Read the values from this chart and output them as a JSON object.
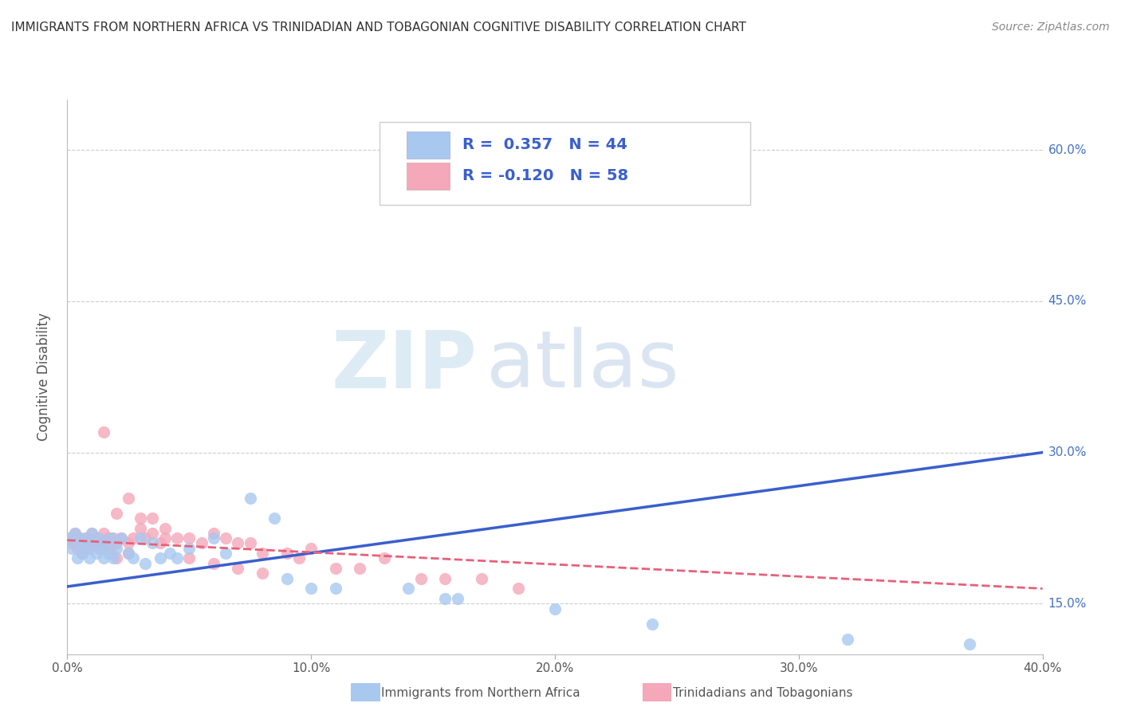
{
  "title": "IMMIGRANTS FROM NORTHERN AFRICA VS TRINIDADIAN AND TOBAGONIAN COGNITIVE DISABILITY CORRELATION CHART",
  "source": "Source: ZipAtlas.com",
  "xlabel_blue": "Immigrants from Northern Africa",
  "xlabel_pink": "Trinidadians and Tobagonians",
  "ylabel": "Cognitive Disability",
  "xlim": [
    0.0,
    0.4
  ],
  "ylim": [
    0.1,
    0.65
  ],
  "yticks": [
    0.15,
    0.3,
    0.45,
    0.6
  ],
  "ytick_labels": [
    "15.0%",
    "30.0%",
    "45.0%",
    "60.0%"
  ],
  "xticks": [
    0.0,
    0.1,
    0.2,
    0.3,
    0.4
  ],
  "xtick_labels": [
    "0.0%",
    "10.0%",
    "20.0%",
    "30.0%",
    "40.0%"
  ],
  "blue_R": 0.357,
  "blue_N": 44,
  "pink_R": -0.12,
  "pink_N": 58,
  "blue_color": "#A8C8F0",
  "pink_color": "#F4A8BA",
  "blue_line_color": "#3A5FCD",
  "pink_line_color": "#E8607A",
  "watermark_zip": "ZIP",
  "watermark_atlas": "atlas",
  "blue_scatter_x": [
    0.001,
    0.002,
    0.003,
    0.004,
    0.005,
    0.006,
    0.007,
    0.008,
    0.009,
    0.01,
    0.011,
    0.012,
    0.013,
    0.014,
    0.015,
    0.016,
    0.017,
    0.018,
    0.019,
    0.02,
    0.022,
    0.025,
    0.027,
    0.03,
    0.032,
    0.035,
    0.038,
    0.042,
    0.045,
    0.05,
    0.06,
    0.065,
    0.075,
    0.085,
    0.09,
    0.1,
    0.11,
    0.14,
    0.155,
    0.16,
    0.2,
    0.24,
    0.32,
    0.37
  ],
  "blue_scatter_y": [
    0.215,
    0.205,
    0.22,
    0.195,
    0.21,
    0.2,
    0.215,
    0.205,
    0.195,
    0.22,
    0.21,
    0.2,
    0.215,
    0.205,
    0.195,
    0.21,
    0.2,
    0.215,
    0.195,
    0.205,
    0.215,
    0.2,
    0.195,
    0.215,
    0.19,
    0.21,
    0.195,
    0.2,
    0.195,
    0.205,
    0.215,
    0.2,
    0.255,
    0.235,
    0.175,
    0.165,
    0.165,
    0.165,
    0.155,
    0.155,
    0.145,
    0.13,
    0.115,
    0.11
  ],
  "pink_scatter_x": [
    0.001,
    0.002,
    0.003,
    0.004,
    0.005,
    0.006,
    0.007,
    0.008,
    0.009,
    0.01,
    0.011,
    0.012,
    0.013,
    0.014,
    0.015,
    0.016,
    0.017,
    0.018,
    0.019,
    0.02,
    0.022,
    0.025,
    0.027,
    0.03,
    0.032,
    0.035,
    0.038,
    0.04,
    0.045,
    0.05,
    0.055,
    0.06,
    0.065,
    0.07,
    0.075,
    0.08,
    0.09,
    0.095,
    0.1,
    0.11,
    0.12,
    0.13,
    0.145,
    0.155,
    0.17,
    0.185,
    0.015,
    0.02,
    0.025,
    0.03,
    0.035,
    0.04,
    0.05,
    0.06,
    0.07,
    0.08,
    0.02,
    0.025
  ],
  "pink_scatter_y": [
    0.215,
    0.21,
    0.22,
    0.205,
    0.215,
    0.2,
    0.21,
    0.215,
    0.205,
    0.22,
    0.21,
    0.215,
    0.205,
    0.21,
    0.22,
    0.21,
    0.215,
    0.205,
    0.215,
    0.21,
    0.215,
    0.21,
    0.215,
    0.225,
    0.215,
    0.22,
    0.21,
    0.215,
    0.215,
    0.215,
    0.21,
    0.22,
    0.215,
    0.21,
    0.21,
    0.2,
    0.2,
    0.195,
    0.205,
    0.185,
    0.185,
    0.195,
    0.175,
    0.175,
    0.175,
    0.165,
    0.32,
    0.24,
    0.255,
    0.235,
    0.235,
    0.225,
    0.195,
    0.19,
    0.185,
    0.18,
    0.195,
    0.2
  ],
  "blue_trendline_x": [
    0.0,
    0.4
  ],
  "blue_trendline_y": [
    0.167,
    0.3
  ],
  "pink_trendline_x": [
    0.0,
    0.4
  ],
  "pink_trendline_y": [
    0.213,
    0.165
  ]
}
